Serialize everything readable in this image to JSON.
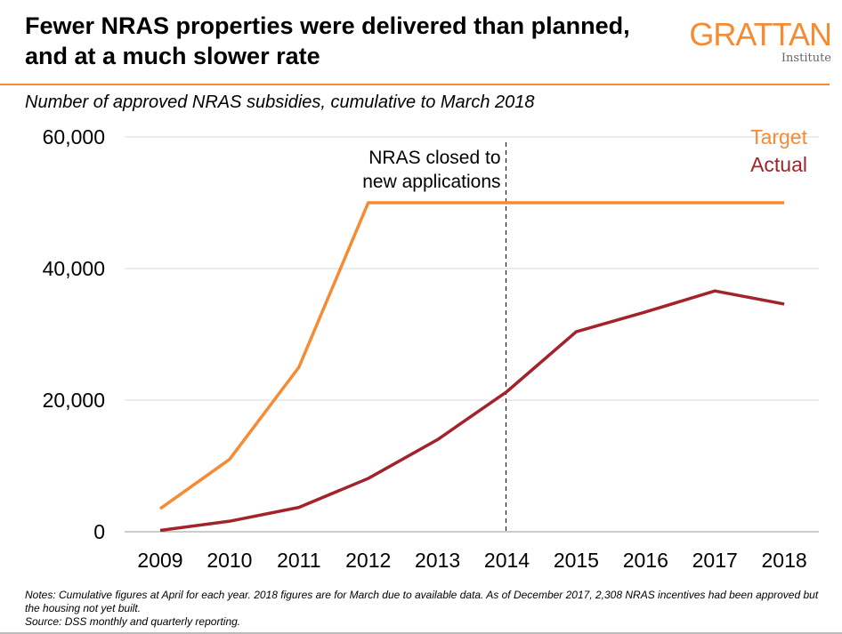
{
  "title": "Fewer NRAS properties were delivered than planned, and at a much slower rate",
  "logo": {
    "main": "GRATTAN",
    "sub": "Institute"
  },
  "subtitle": "Number of approved NRAS subsidies, cumulative to March 2018",
  "notes": {
    "line1": "Notes: Cumulative figures at April for each year. 2018 figures are for March due to available data. As of December 2017, 2,308 NRAS incentives had been approved but the housing not yet built.",
    "source": "Source: DSS monthly and quarterly reporting."
  },
  "colors": {
    "accent": "#f68b33",
    "target": "#f68b33",
    "actual": "#a3232a"
  },
  "chart_data": {
    "type": "line",
    "categories": [
      "2009",
      "2010",
      "2011",
      "2012",
      "2013",
      "2014",
      "2015",
      "2016",
      "2017",
      "2018"
    ],
    "ylim": [
      0,
      60000
    ],
    "yticks": [
      0,
      20000,
      40000,
      60000
    ],
    "ytick_labels": [
      "0",
      "20,000",
      "40,000",
      "60,000"
    ],
    "grid": true,
    "legend": "top-right",
    "series": [
      {
        "name": "Target",
        "color": "#f68b33",
        "values": [
          3500,
          11000,
          25000,
          50000,
          50000,
          50000,
          50000,
          50000,
          50000,
          50000
        ]
      },
      {
        "name": "Actual",
        "color": "#a3232a",
        "values": [
          200,
          1600,
          3700,
          8100,
          14000,
          21300,
          30400,
          33400,
          36600,
          34600
        ]
      }
    ],
    "annotation": {
      "text_line1": "NRAS closed to",
      "text_line2": "new applications",
      "x": "2014"
    }
  }
}
